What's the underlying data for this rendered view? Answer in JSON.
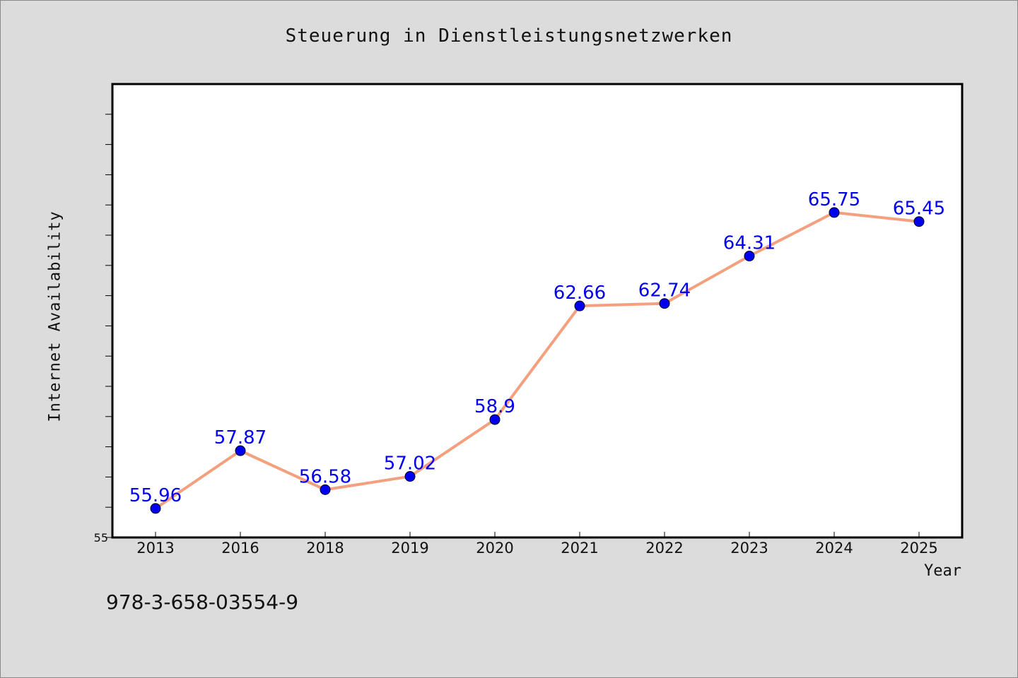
{
  "colors": {
    "background": "#dcdcdc",
    "plot_background": "#ffffff",
    "line": "#f4a07e",
    "marker": "#0000ee",
    "label": "#0000ee"
  },
  "footnote": "978-3-658-03554-9",
  "chart_data": {
    "type": "line",
    "title": "Steuerung in Dienstleistungsnetzwerken",
    "xlabel": "Year",
    "ylabel": "Internet Availability",
    "categories": [
      "2013",
      "2016",
      "2018",
      "2019",
      "2020",
      "2021",
      "2022",
      "2023",
      "2024",
      "2025"
    ],
    "series": [
      {
        "values": [
          55.96,
          57.87,
          56.58,
          57.02,
          58.9,
          62.66,
          62.74,
          64.31,
          65.75,
          65.45
        ]
      }
    ],
    "data_labels": [
      "55.96",
      "57.87",
      "56.58",
      "57.02",
      "58.9",
      "62.66",
      "62.74",
      "64.31",
      "65.75",
      "65.45"
    ],
    "ylim": [
      55,
      70
    ],
    "y_tick_labels": [
      "55"
    ],
    "grid": false,
    "legend": "none"
  }
}
